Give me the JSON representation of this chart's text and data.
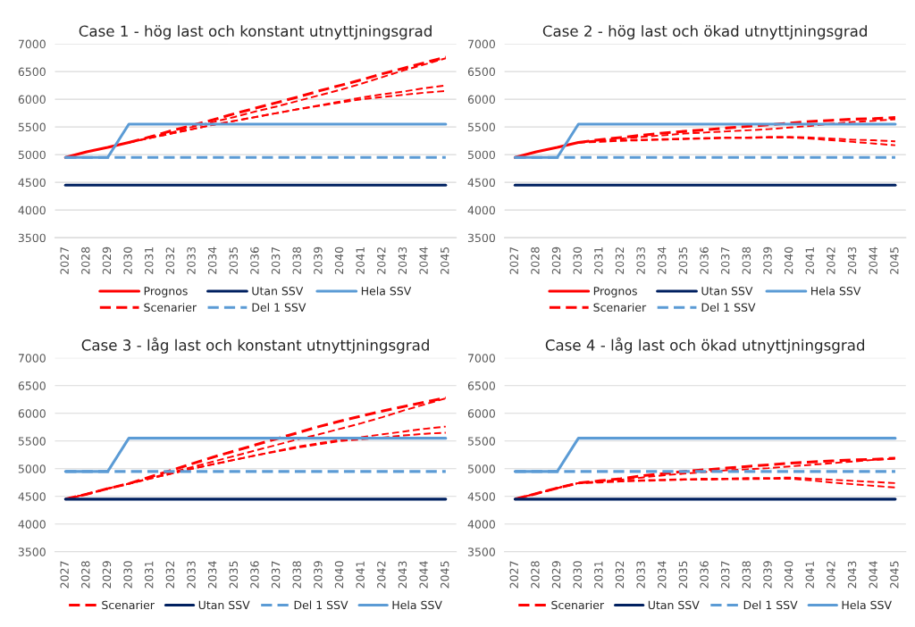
{
  "chart_data": [
    {
      "type": "line",
      "title": "Case 1 - hög last och konstant utnyttjningsgrad",
      "categories": [
        "2027",
        "2028",
        "2029",
        "2030",
        "2031",
        "2032",
        "2033",
        "2034",
        "2035",
        "2036",
        "2037",
        "2038",
        "2039",
        "2040",
        "2041",
        "2042",
        "2043",
        "2044",
        "2045"
      ],
      "ylim": [
        3500,
        7000
      ],
      "yticks": [
        3500,
        4000,
        4500,
        5000,
        5500,
        6000,
        6500,
        7000
      ],
      "grid": "y",
      "legend": "bottom",
      "series": [
        {
          "name": "Prognos",
          "color": "#ff0000",
          "line_style": "solid",
          "values": [
            4950,
            5050,
            5130,
            5220,
            null,
            null,
            null,
            null,
            null,
            null,
            null,
            null,
            null,
            null,
            null,
            null,
            null,
            null,
            null
          ]
        },
        {
          "name": "Scenarier",
          "color": "#ff0000",
          "line_style": "dashed",
          "values": [
            null,
            null,
            null,
            5220,
            5320,
            5430,
            5530,
            5630,
            5740,
            5840,
            5940,
            6040,
            6150,
            6250,
            6350,
            6460,
            6560,
            6660,
            6760
          ]
        },
        {
          "color": "#ff0000",
          "line_style": "dashed",
          "values": [
            null,
            null,
            null,
            5220,
            5310,
            5400,
            5500,
            5590,
            5680,
            5780,
            5870,
            5970,
            6070,
            6170,
            6280,
            6400,
            6520,
            6630,
            6740
          ]
        },
        {
          "color": "#ff0000",
          "line_style": "dashed",
          "values": [
            null,
            null,
            null,
            5220,
            5300,
            5380,
            5460,
            5540,
            5610,
            5680,
            5750,
            5820,
            5890,
            5960,
            6030,
            6090,
            6140,
            6200,
            6250
          ]
        },
        {
          "color": "#ff0000",
          "line_style": "dashed",
          "values": [
            null,
            null,
            null,
            5220,
            5300,
            5380,
            5460,
            5540,
            5610,
            5680,
            5750,
            5820,
            5880,
            5940,
            6000,
            6040,
            6080,
            6120,
            6150
          ]
        },
        {
          "name": "Utan SSV",
          "color": "#002060",
          "line_style": "solid",
          "values": [
            4450,
            4450,
            4450,
            4450,
            4450,
            4450,
            4450,
            4450,
            4450,
            4450,
            4450,
            4450,
            4450,
            4450,
            4450,
            4450,
            4450,
            4450,
            4450
          ]
        },
        {
          "name": "Del 1 SSV",
          "color": "#5b9bd5",
          "line_style": "dashed",
          "values": [
            4950,
            4950,
            4950,
            4950,
            4950,
            4950,
            4950,
            4950,
            4950,
            4950,
            4950,
            4950,
            4950,
            4950,
            4950,
            4950,
            4950,
            4950,
            4950
          ]
        },
        {
          "name": "Hela SSV",
          "color": "#5b9bd5",
          "line_style": "solid",
          "values": [
            4950,
            4950,
            4950,
            5550,
            5550,
            5550,
            5550,
            5550,
            5550,
            5550,
            5550,
            5550,
            5550,
            5550,
            5550,
            5550,
            5550,
            5550,
            5550
          ]
        }
      ]
    },
    {
      "type": "line",
      "title": "Case 2 - hög last och ökad utnyttjningsgrad",
      "categories": [
        "2027",
        "2028",
        "2029",
        "2030",
        "2031",
        "2032",
        "2033",
        "2034",
        "2035",
        "2036",
        "2037",
        "2038",
        "2039",
        "2040",
        "2041",
        "2042",
        "2043",
        "2044",
        "2045"
      ],
      "ylim": [
        3500,
        7000
      ],
      "yticks": [
        3500,
        4000,
        4500,
        5000,
        5500,
        6000,
        6500,
        7000
      ],
      "grid": "y",
      "legend": "bottom",
      "series": [
        {
          "name": "Prognos",
          "color": "#ff0000",
          "line_style": "solid",
          "values": [
            4950,
            5050,
            5130,
            5220,
            null,
            null,
            null,
            null,
            null,
            null,
            null,
            null,
            null,
            null,
            null,
            null,
            null,
            null,
            null
          ]
        },
        {
          "name": "Scenarier",
          "color": "#ff0000",
          "line_style": "dashed",
          "values": [
            null,
            null,
            null,
            5220,
            5270,
            5310,
            5350,
            5390,
            5420,
            5450,
            5480,
            5510,
            5540,
            5570,
            5600,
            5620,
            5640,
            5650,
            5670
          ]
        },
        {
          "color": "#ff0000",
          "line_style": "dashed",
          "values": [
            null,
            null,
            null,
            5220,
            5260,
            5290,
            5320,
            5350,
            5380,
            5400,
            5420,
            5440,
            5460,
            5490,
            5520,
            5560,
            5590,
            5610,
            5640
          ]
        },
        {
          "color": "#ff0000",
          "line_style": "dashed",
          "values": [
            null,
            null,
            null,
            5220,
            5240,
            5260,
            5270,
            5280,
            5290,
            5300,
            5310,
            5310,
            5320,
            5320,
            5310,
            5290,
            5270,
            5260,
            5240
          ]
        },
        {
          "color": "#ff0000",
          "line_style": "dashed",
          "values": [
            null,
            null,
            null,
            5220,
            5230,
            5250,
            5260,
            5270,
            5280,
            5290,
            5300,
            5300,
            5310,
            5310,
            5290,
            5260,
            5230,
            5200,
            5170
          ]
        },
        {
          "name": "Utan SSV",
          "color": "#002060",
          "line_style": "solid",
          "values": [
            4450,
            4450,
            4450,
            4450,
            4450,
            4450,
            4450,
            4450,
            4450,
            4450,
            4450,
            4450,
            4450,
            4450,
            4450,
            4450,
            4450,
            4450,
            4450
          ]
        },
        {
          "name": "Del 1 SSV",
          "color": "#5b9bd5",
          "line_style": "dashed",
          "values": [
            4950,
            4950,
            4950,
            4950,
            4950,
            4950,
            4950,
            4950,
            4950,
            4950,
            4950,
            4950,
            4950,
            4950,
            4950,
            4950,
            4950,
            4950,
            4950
          ]
        },
        {
          "name": "Hela SSV",
          "color": "#5b9bd5",
          "line_style": "solid",
          "values": [
            4950,
            4950,
            4950,
            5550,
            5550,
            5550,
            5550,
            5550,
            5550,
            5550,
            5550,
            5550,
            5550,
            5550,
            5550,
            5550,
            5550,
            5550,
            5550
          ]
        }
      ]
    },
    {
      "type": "line",
      "title": "Case 3 - låg last och konstant utnyttjningsgrad",
      "categories": [
        "2027",
        "2028",
        "2029",
        "2030",
        "2031",
        "2032",
        "2033",
        "2034",
        "2035",
        "2036",
        "2037",
        "2038",
        "2039",
        "2040",
        "2041",
        "2042",
        "2043",
        "2044",
        "2045"
      ],
      "ylim": [
        3500,
        7000
      ],
      "yticks": [
        3500,
        4000,
        4500,
        5000,
        5500,
        6000,
        6500,
        7000
      ],
      "grid": "y",
      "legend": "bottom",
      "series": [
        {
          "name": "Scenarier",
          "color": "#ff0000",
          "line_style": "dashed",
          "values": [
            4450,
            4540,
            4640,
            4730,
            4850,
            4970,
            5090,
            5210,
            5320,
            5430,
            5540,
            5650,
            5760,
            5860,
            5950,
            6040,
            6120,
            6200,
            6280
          ]
        },
        {
          "color": "#ff0000",
          "line_style": "dashed",
          "values": [
            4450,
            4540,
            4640,
            4730,
            4830,
            4930,
            5030,
            5130,
            5230,
            5330,
            5430,
            5530,
            5620,
            5720,
            5820,
            5930,
            6050,
            6160,
            6270
          ]
        },
        {
          "color": "#ff0000",
          "line_style": "dashed",
          "values": [
            4450,
            4540,
            4640,
            4730,
            4820,
            4910,
            5000,
            5080,
            5160,
            5240,
            5320,
            5400,
            5460,
            5520,
            5570,
            5620,
            5670,
            5720,
            5760
          ]
        },
        {
          "color": "#ff0000",
          "line_style": "dashed",
          "values": [
            4450,
            4540,
            4640,
            4730,
            4820,
            4910,
            5000,
            5080,
            5160,
            5240,
            5310,
            5380,
            5440,
            5500,
            5530,
            5560,
            5600,
            5630,
            5650
          ]
        },
        {
          "name": "Utan SSV",
          "color": "#002060",
          "line_style": "solid",
          "values": [
            4450,
            4450,
            4450,
            4450,
            4450,
            4450,
            4450,
            4450,
            4450,
            4450,
            4450,
            4450,
            4450,
            4450,
            4450,
            4450,
            4450,
            4450,
            4450
          ]
        },
        {
          "name": "Del 1 SSV",
          "color": "#5b9bd5",
          "line_style": "dashed",
          "values": [
            4950,
            4950,
            4950,
            4950,
            4950,
            4950,
            4950,
            4950,
            4950,
            4950,
            4950,
            4950,
            4950,
            4950,
            4950,
            4950,
            4950,
            4950,
            4950
          ]
        },
        {
          "name": "Hela SSV",
          "color": "#5b9bd5",
          "line_style": "solid",
          "values": [
            4950,
            4950,
            4950,
            5550,
            5550,
            5550,
            5550,
            5550,
            5550,
            5550,
            5550,
            5550,
            5550,
            5550,
            5550,
            5550,
            5550,
            5550,
            5550
          ]
        }
      ]
    },
    {
      "type": "line",
      "title": "Case 4 - låg last och ökad utnyttjningsgrad",
      "categories": [
        "2027",
        "2028",
        "2029",
        "2030",
        "2031",
        "2032",
        "2033",
        "2034",
        "2035",
        "2036",
        "2037",
        "2038",
        "2039",
        "2040",
        "2041",
        "2042",
        "2043",
        "2044",
        "2045"
      ],
      "ylim": [
        3500,
        7000
      ],
      "yticks": [
        3500,
        4000,
        4500,
        5000,
        5500,
        6000,
        6500,
        7000
      ],
      "grid": "y",
      "legend": "bottom",
      "series": [
        {
          "name": "Scenarier",
          "color": "#ff0000",
          "line_style": "dashed",
          "values": [
            4450,
            4550,
            4650,
            4740,
            4780,
            4820,
            4870,
            4910,
            4950,
            4980,
            5010,
            5040,
            5070,
            5100,
            5120,
            5140,
            5160,
            5170,
            5190
          ]
        },
        {
          "color": "#ff0000",
          "line_style": "dashed",
          "values": [
            4450,
            4550,
            4650,
            4740,
            4770,
            4800,
            4840,
            4880,
            4910,
            4940,
            4970,
            4990,
            5010,
            5040,
            5070,
            5100,
            5130,
            5160,
            5180
          ]
        },
        {
          "color": "#ff0000",
          "line_style": "dashed",
          "values": [
            4450,
            4550,
            4650,
            4740,
            4760,
            4780,
            4790,
            4800,
            4810,
            4820,
            4820,
            4830,
            4830,
            4840,
            4820,
            4800,
            4780,
            4760,
            4740
          ]
        },
        {
          "color": "#ff0000",
          "line_style": "dashed",
          "values": [
            4450,
            4550,
            4650,
            4740,
            4750,
            4770,
            4780,
            4790,
            4800,
            4800,
            4810,
            4810,
            4820,
            4820,
            4790,
            4750,
            4720,
            4690,
            4660
          ]
        },
        {
          "name": "Utan SSV",
          "color": "#002060",
          "line_style": "solid",
          "values": [
            4450,
            4450,
            4450,
            4450,
            4450,
            4450,
            4450,
            4450,
            4450,
            4450,
            4450,
            4450,
            4450,
            4450,
            4450,
            4450,
            4450,
            4450,
            4450
          ]
        },
        {
          "name": "Del 1 SSV",
          "color": "#5b9bd5",
          "line_style": "dashed",
          "values": [
            4950,
            4950,
            4950,
            4950,
            4950,
            4950,
            4950,
            4950,
            4950,
            4950,
            4950,
            4950,
            4950,
            4950,
            4950,
            4950,
            4950,
            4950,
            4950
          ]
        },
        {
          "name": "Hela SSV",
          "color": "#5b9bd5",
          "line_style": "solid",
          "values": [
            4950,
            4950,
            4950,
            5550,
            5550,
            5550,
            5550,
            5550,
            5550,
            5550,
            5550,
            5550,
            5550,
            5550,
            5550,
            5550,
            5550,
            5550,
            5550
          ]
        }
      ]
    }
  ]
}
